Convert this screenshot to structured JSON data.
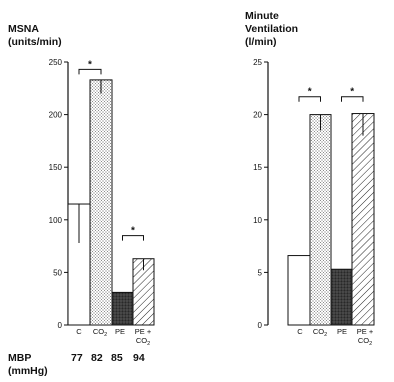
{
  "chart_data": [
    {
      "type": "bar",
      "title_lines": [
        "MSNA",
        "(units/min)"
      ],
      "categories": [
        "C",
        "CO2",
        "PE",
        "PE + CO2"
      ],
      "category_labels": [
        {
          "main": "C",
          "sub": ""
        },
        {
          "main": "CO",
          "sub": "2"
        },
        {
          "main": "PE",
          "sub": ""
        },
        {
          "main": "PE +",
          "sub": "",
          "line2": "CO",
          "line2sub": "2"
        }
      ],
      "values": [
        115,
        233,
        31,
        63
      ],
      "error_bars": [
        {
          "from": 115,
          "to": 78
        },
        {
          "from": 233,
          "to": 220
        },
        {
          "from": 31,
          "to": 31
        },
        {
          "from": 63,
          "to": 52
        }
      ],
      "patterns": [
        "white",
        "dots",
        "dark",
        "hatch"
      ],
      "ylim": [
        0,
        250
      ],
      "yticks": [
        "0",
        "50",
        "100",
        "150",
        "200",
        "250"
      ],
      "significance": [
        {
          "between": [
            0,
            1
          ],
          "height": 243,
          "label": "*"
        },
        {
          "between": [
            2,
            3
          ],
          "height": 85,
          "label": "*"
        }
      ]
    },
    {
      "type": "bar",
      "title_lines": [
        "Minute",
        "Ventilation",
        "(l/min)"
      ],
      "categories": [
        "C",
        "CO2",
        "PE",
        "PE + CO2"
      ],
      "category_labels": [
        {
          "main": "C",
          "sub": ""
        },
        {
          "main": "CO",
          "sub": "2"
        },
        {
          "main": "PE",
          "sub": ""
        },
        {
          "main": "PE +",
          "sub": "",
          "line2": "CO",
          "line2sub": "2"
        }
      ],
      "values": [
        6.6,
        20.0,
        5.3,
        20.1
      ],
      "error_bars": [
        {
          "from": 6.6,
          "to": 6.6
        },
        {
          "from": 20.0,
          "to": 18.5
        },
        {
          "from": 5.3,
          "to": 5.3
        },
        {
          "from": 20.1,
          "to": 18.0
        }
      ],
      "patterns": [
        "white",
        "dots",
        "dark",
        "hatch"
      ],
      "ylim": [
        0,
        25
      ],
      "yticks": [
        "0",
        "5",
        "10",
        "15",
        "20",
        "25"
      ],
      "significance": [
        {
          "between": [
            0,
            1
          ],
          "height": 21.7,
          "label": "*"
        },
        {
          "between": [
            2,
            3
          ],
          "height": 21.7,
          "label": "*"
        }
      ]
    }
  ],
  "mbp": {
    "label_line1": "MBP",
    "label_line2": "(mmHg)",
    "values": [
      "77",
      "82",
      "85",
      "94"
    ]
  }
}
